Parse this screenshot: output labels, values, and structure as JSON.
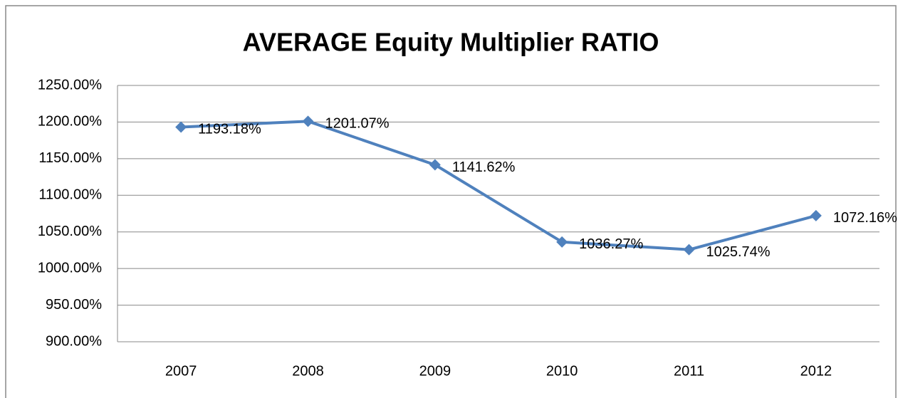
{
  "chart_data": {
    "type": "line",
    "title": "AVERAGE Equity Multiplier RATIO",
    "categories": [
      "2007",
      "2008",
      "2009",
      "2010",
      "2011",
      "2012"
    ],
    "series": [
      {
        "name": "AVERAGE Equity Multiplier RATIO",
        "color": "#4f81bd",
        "values": [
          1193.18,
          1201.07,
          1141.62,
          1036.27,
          1025.74,
          1072.16
        ],
        "value_labels": [
          "1193.18%",
          "1201.07%",
          "1141.62%",
          "1036.27%",
          "1025.74%",
          "1072.16%"
        ]
      }
    ],
    "ylim": [
      900,
      1250
    ],
    "yticks": [
      {
        "value": 900,
        "label": "900.00%"
      },
      {
        "value": 950,
        "label": "950.00%"
      },
      {
        "value": 1000,
        "label": "1000.00%"
      },
      {
        "value": 1050,
        "label": "1050.00%"
      },
      {
        "value": 1100,
        "label": "1100.00%"
      },
      {
        "value": 1150,
        "label": "1150.00%"
      },
      {
        "value": 1200,
        "label": "1200.00%"
      },
      {
        "value": 1250,
        "label": "1250.00%"
      }
    ],
    "grid": true
  }
}
